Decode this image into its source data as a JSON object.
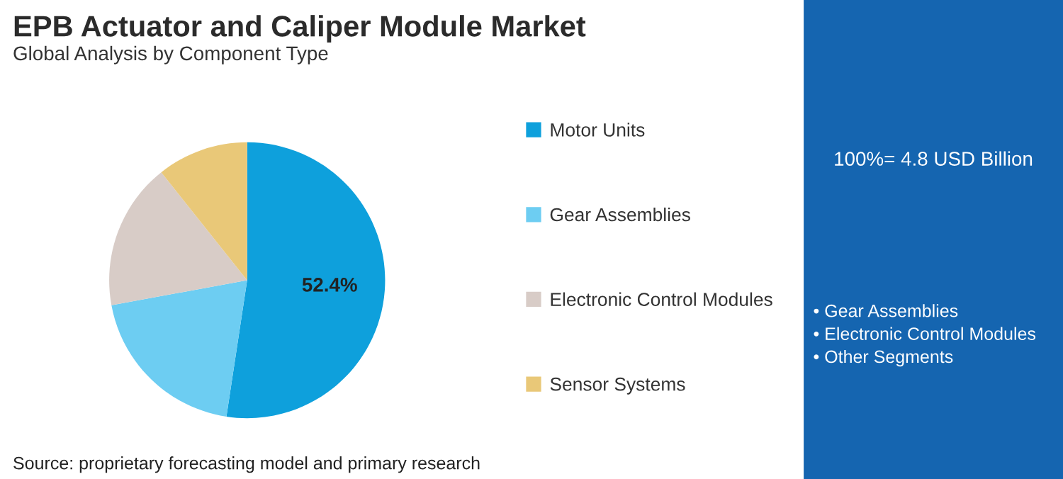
{
  "chart_data": {
    "type": "pie",
    "title": "EPB Actuator and Caliper Module Market",
    "subtitle": "Global Analysis by Component Type",
    "categories": [
      "Motor Units",
      "Gear Assemblies",
      "Electronic Control Modules",
      "Sensor Systems"
    ],
    "values": [
      52.4,
      19.7,
      17.2,
      10.7
    ],
    "colors": [
      "#0ea0dc",
      "#6dcdf2",
      "#d8ccc7",
      "#e9c878"
    ],
    "value_labels": [
      "52.4%",
      null,
      null,
      null
    ],
    "legend": "right",
    "annotations": [
      "100%= 4.8 USD Billion",
      "• Gear Assemblies\n• Electronic Control Modules\n• Other Segments",
      "Source: proprietary forecasting model and primary research"
    ]
  }
}
